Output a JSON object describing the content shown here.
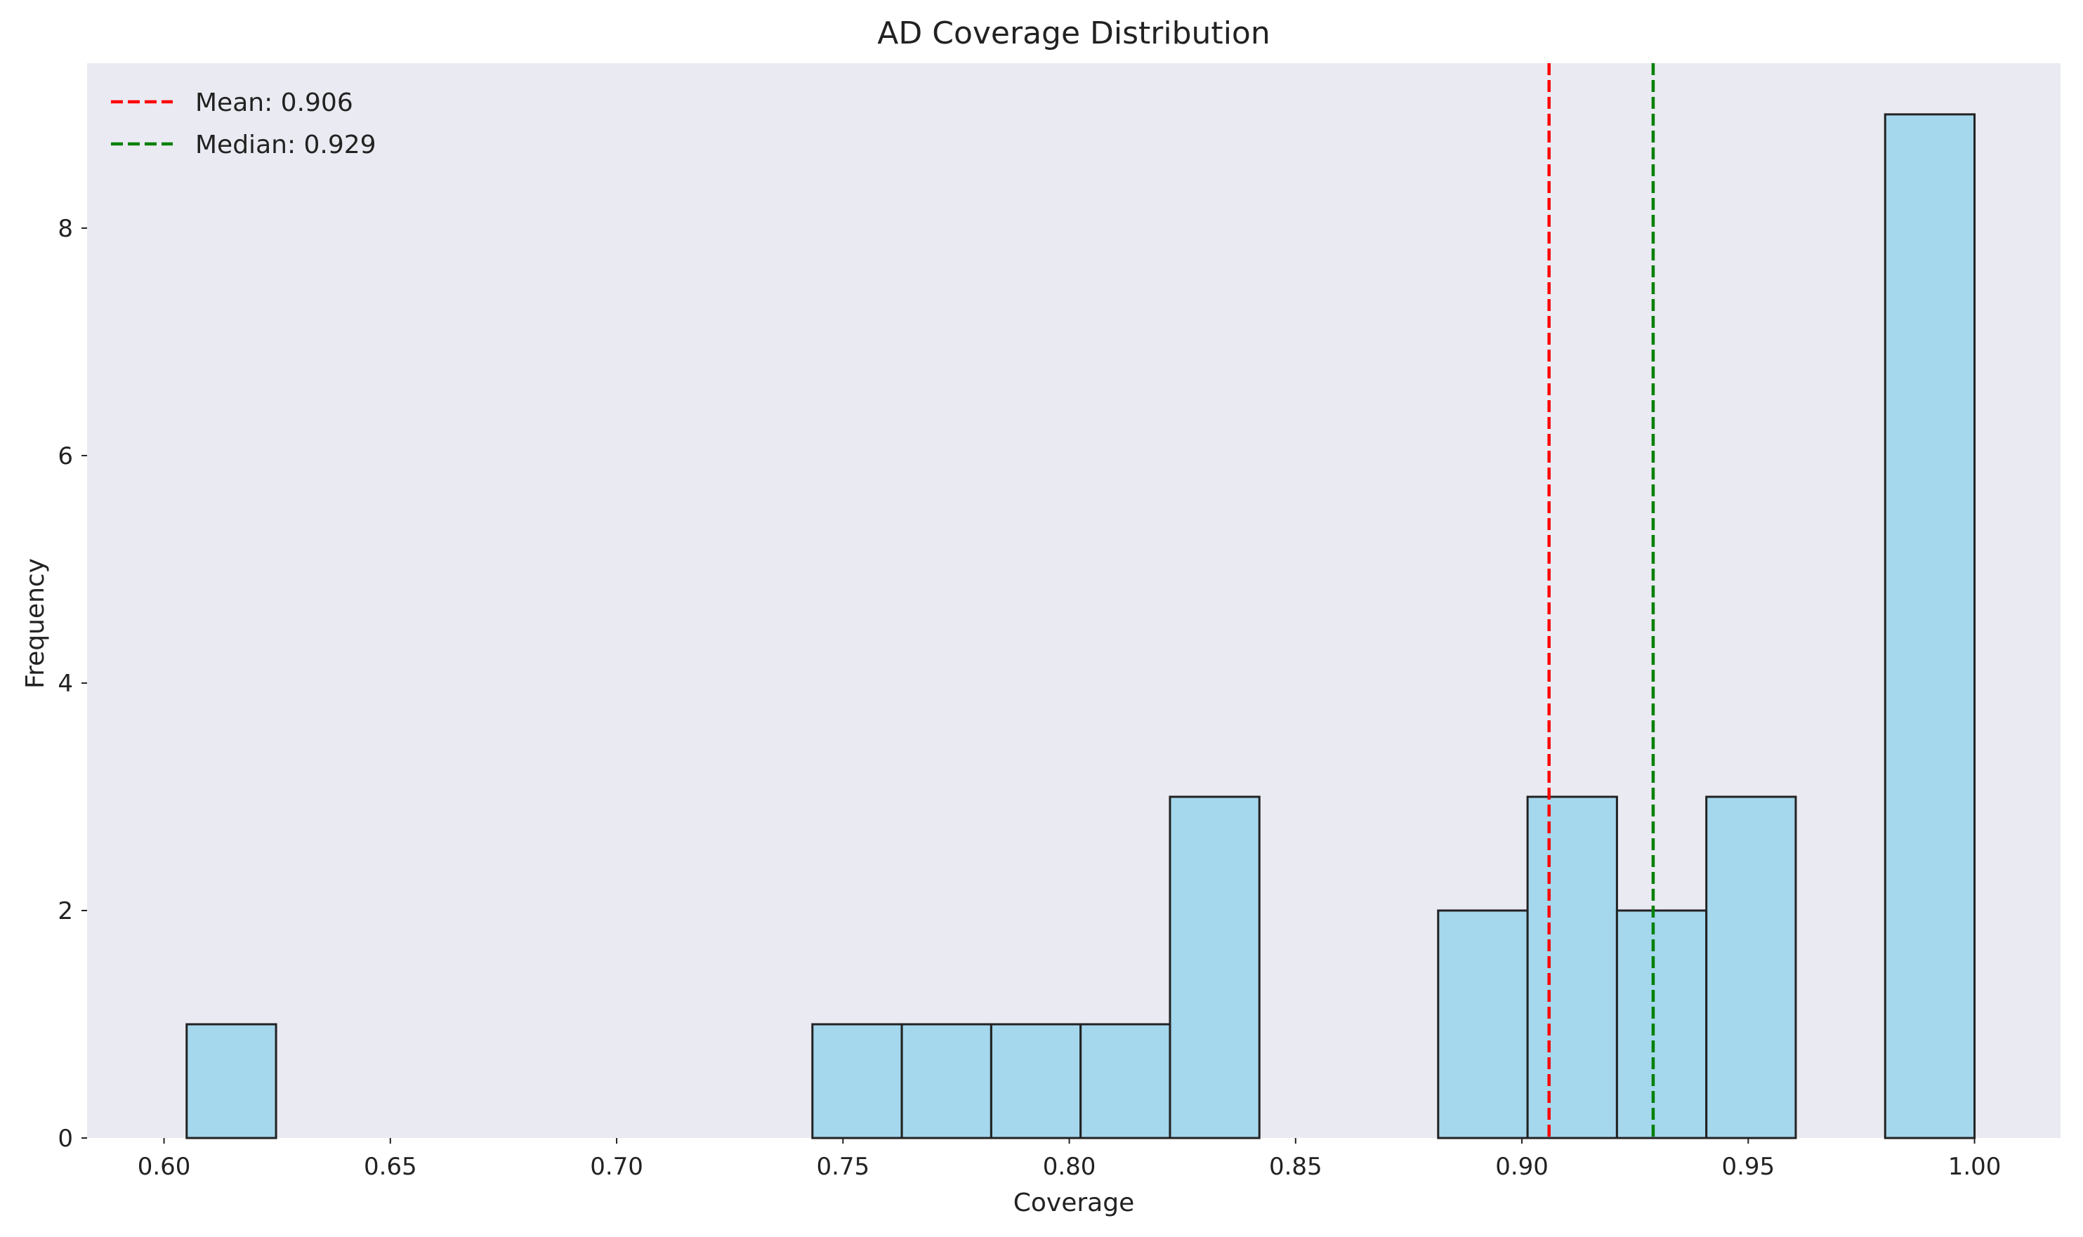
{
  "chart_data": {
    "type": "bar",
    "title": "AD Coverage Distribution",
    "xlabel": "Coverage",
    "ylabel": "Frequency",
    "xlim": [
      0.583,
      1.019
    ],
    "ylim": [
      0,
      9.45
    ],
    "xticks": [
      0.6,
      0.65,
      0.7,
      0.75,
      0.8,
      0.85,
      0.9,
      0.95,
      1.0
    ],
    "xtick_labels": [
      "0.60",
      "0.65",
      "0.70",
      "0.75",
      "0.80",
      "0.85",
      "0.90",
      "0.95",
      "1.00"
    ],
    "yticks": [
      0,
      2,
      4,
      6,
      8
    ],
    "ytick_labels": [
      "0",
      "2",
      "4",
      "6",
      "8"
    ],
    "bin_range": [
      0.605,
      1.0
    ],
    "counts": [
      1,
      0,
      0,
      0,
      0,
      0,
      0,
      1,
      1,
      1,
      1,
      3,
      0,
      0,
      2,
      3,
      2,
      3,
      0,
      9
    ],
    "reference_lines": [
      {
        "label": "Mean: 0.906",
        "value": 0.906,
        "color": "#ff0000"
      },
      {
        "label": "Median: 0.929",
        "value": 0.929,
        "color": "#008000"
      }
    ],
    "bar_color": "#87ceeb",
    "bar_edge_color": "#222222",
    "background_color": "#eaeaf2",
    "grid": false,
    "legend_position": "top-left"
  }
}
